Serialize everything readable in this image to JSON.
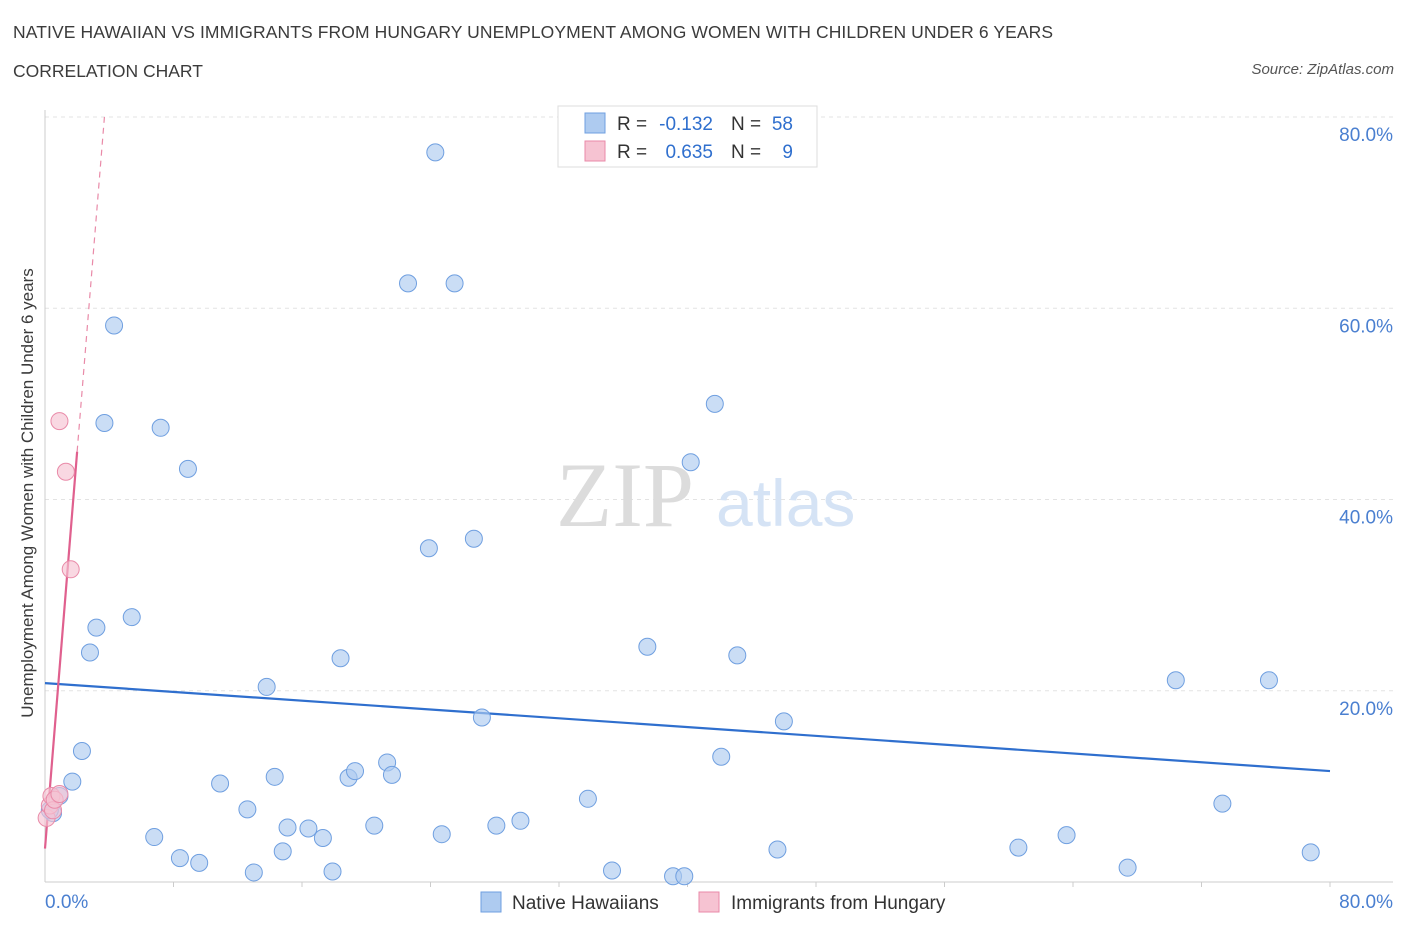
{
  "header": {
    "title": "NATIVE HAWAIIAN VS IMMIGRANTS FROM HUNGARY UNEMPLOYMENT AMONG WOMEN WITH CHILDREN UNDER 6 YEARS",
    "subtitle": "CORRELATION CHART",
    "source": "Source: ZipAtlas.com"
  },
  "watermark": {
    "zip": "ZIP",
    "atlas": "atlas"
  },
  "colors": {
    "blue_fill": "#aecbf0",
    "blue_stroke": "#6f9fe0",
    "blue_line": "#2f6fce",
    "pink_fill": "#f6c3d2",
    "pink_stroke": "#e98aa8",
    "pink_line": "#e0608e",
    "axis_text": "#4a7fd0"
  },
  "stats_legend": [
    {
      "series": "Native Hawaiians",
      "r_label": "R =",
      "r_value": "-0.132",
      "n_label": "N =",
      "n_value": "58"
    },
    {
      "series": "Immigrants from Hungary",
      "r_label": "R =",
      "r_value": "0.635",
      "n_label": "N =",
      "n_value": "9"
    }
  ],
  "chart_data": {
    "type": "scatter",
    "title": "NATIVE HAWAIIAN VS IMMIGRANTS FROM HUNGARY UNEMPLOYMENT AMONG WOMEN WITH CHILDREN UNDER 6 YEARS",
    "xlabel": "",
    "ylabel": "Unemployment Among Women with Children Under 6 years",
    "xlim": [
      0,
      80
    ],
    "ylim": [
      0,
      80
    ],
    "x_tick_labels": [
      "0.0%",
      "80.0%"
    ],
    "y_ticks": [
      20,
      40,
      60,
      80
    ],
    "y_tick_labels": [
      "20.0%",
      "40.0%",
      "60.0%",
      "80.0%"
    ],
    "grid": true,
    "legend": [
      "Native Hawaiians",
      "Immigrants from Hungary"
    ],
    "series": [
      {
        "name": "Native Hawaiians",
        "points": [
          [
            0.5,
            7.2
          ],
          [
            0.9,
            9.0
          ],
          [
            1.7,
            10.5
          ],
          [
            2.3,
            13.7
          ],
          [
            2.8,
            24.0
          ],
          [
            3.2,
            26.6
          ],
          [
            3.7,
            48.0
          ],
          [
            4.3,
            58.2
          ],
          [
            5.4,
            27.7
          ],
          [
            6.8,
            4.7
          ],
          [
            7.2,
            47.5
          ],
          [
            8.4,
            2.5
          ],
          [
            8.9,
            43.2
          ],
          [
            9.6,
            2.0
          ],
          [
            10.9,
            10.3
          ],
          [
            12.6,
            7.6
          ],
          [
            13.0,
            1.0
          ],
          [
            13.8,
            20.4
          ],
          [
            14.3,
            11.0
          ],
          [
            14.8,
            3.2
          ],
          [
            15.1,
            5.7
          ],
          [
            16.4,
            5.6
          ],
          [
            17.3,
            4.6
          ],
          [
            17.9,
            1.1
          ],
          [
            18.4,
            23.4
          ],
          [
            18.9,
            10.9
          ],
          [
            19.3,
            11.6
          ],
          [
            20.5,
            5.9
          ],
          [
            21.3,
            12.5
          ],
          [
            21.6,
            11.2
          ],
          [
            22.6,
            62.6
          ],
          [
            23.9,
            34.9
          ],
          [
            24.3,
            76.3
          ],
          [
            24.7,
            5.0
          ],
          [
            25.5,
            62.6
          ],
          [
            26.7,
            35.9
          ],
          [
            27.2,
            17.2
          ],
          [
            28.1,
            5.9
          ],
          [
            29.6,
            6.4
          ],
          [
            33.8,
            8.7
          ],
          [
            35.3,
            1.2
          ],
          [
            37.5,
            24.6
          ],
          [
            39.1,
            0.6
          ],
          [
            39.8,
            0.6
          ],
          [
            40.2,
            43.9
          ],
          [
            41.7,
            50.0
          ],
          [
            42.1,
            13.1
          ],
          [
            43.1,
            23.7
          ],
          [
            45.6,
            3.4
          ],
          [
            46.0,
            16.8
          ],
          [
            60.6,
            3.6
          ],
          [
            63.6,
            4.9
          ],
          [
            67.4,
            1.5
          ],
          [
            70.4,
            21.1
          ],
          [
            73.3,
            8.2
          ],
          [
            76.2,
            21.1
          ],
          [
            78.8,
            3.1
          ],
          [
            0.3,
            7.5
          ]
        ]
      },
      {
        "name": "Immigrants from Hungary",
        "points": [
          [
            0.1,
            6.7
          ],
          [
            0.3,
            8.0
          ],
          [
            0.4,
            9.0
          ],
          [
            0.5,
            7.5
          ],
          [
            0.6,
            8.6
          ],
          [
            0.9,
            9.2
          ],
          [
            0.9,
            48.2
          ],
          [
            1.3,
            42.9
          ],
          [
            1.6,
            32.7
          ]
        ]
      }
    ],
    "trend_lines": [
      {
        "series": "Native Hawaiians",
        "x": [
          0,
          80
        ],
        "y": [
          20.8,
          11.6
        ]
      },
      {
        "series": "Immigrants from Hungary",
        "x": [
          0,
          2.0
        ],
        "y": [
          3.5,
          45.0
        ],
        "dashed_extension_to": [
          3.7,
          80
        ]
      }
    ]
  }
}
